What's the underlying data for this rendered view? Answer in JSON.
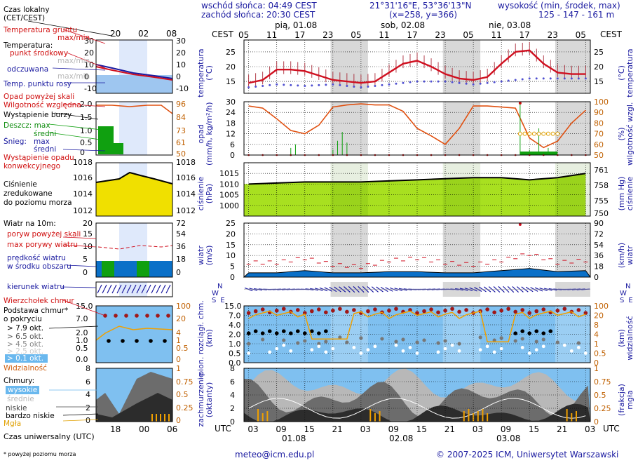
{
  "header": {
    "sunrise": "wschód słońca: 04:49 CEST",
    "sunset": "zachód słońca: 20:30 CEST",
    "coords": "21°31'16\"E, 53°36'13\"N",
    "grid": "(x=258,  y=366)",
    "height_label": "wysokość (min, środek, max)",
    "height_values": "125 - 147 - 161 m",
    "cest": "CEST",
    "utc": "UTC",
    "email": "meteo@icm.edu.pl",
    "copyright": "© 2007-2025 ICM, Uniwersytet Warszawski"
  },
  "days_top": [
    "pią, 01.08",
    "sob, 02.08",
    "nie, 03.08"
  ],
  "hours_top": [
    "05",
    "11",
    "17",
    "23",
    "05",
    "11",
    "17",
    "23",
    "05",
    "11",
    "17",
    "23",
    "05"
  ],
  "hours_bottom": [
    "03",
    "09",
    "15",
    "21",
    "03",
    "09",
    "15",
    "21",
    "03",
    "09",
    "15",
    "21",
    "03"
  ],
  "days_bottom": [
    "01.08",
    "02.08",
    "03.08"
  ],
  "legend": {
    "local_time": "Czas lokalny",
    "local_time_sub": "(CET/CEST)",
    "legend_hours_top": [
      "20",
      "02",
      "08"
    ],
    "legend_hours_bottom": [
      "18",
      "00",
      "06"
    ],
    "ground_temp": "Temperatura gruntu",
    "ground_temp_sub": "max/min",
    "temp": "Temperatura:",
    "temp_mid": "punkt środkowy",
    "temp_maxmin": "max/min",
    "temp_felt": "odczuwana",
    "temp_felt_maxmin": "max/min",
    "dew": "Temp. punktu rosy",
    "precip_above": "Opad powyżej skali",
    "humidity": "Wilgotność względna",
    "storm": "Wystąpienie burzy",
    "rain": "Deszcz: max",
    "rain_mid": "średni",
    "snow": "Śnieg:",
    "snow_max": "max",
    "snow_mid": "średni",
    "convective": "Wystąpienie opadu",
    "convective2": "konwekcyjnego",
    "pressure": "Ciśnienie",
    "pressure2": "zredukowane",
    "pressure3": "do poziomu morza",
    "wind": "Wiatr na 10m:",
    "gust_above": "poryw powyżej skali",
    "gust_max": "max porywy wiatru",
    "wind_speed": "prędkość wiatru",
    "wind_area": "w środku obszaru",
    "wind_dir": "kierunek wiatru",
    "cloud_top": "Wierzchołek chmur",
    "cloud_base": "Podstawa chmur*",
    "cloud_base2": "o pokryciu",
    "okt79": "> 7.9 okt.",
    "okt65": "> 6.5 okt.",
    "okt45": "> 4.5 okt.",
    "okt25": "> 2.5 okt.",
    "okt01": "> 0.1 okt.",
    "visibility": "Widzialność",
    "clouds": "Chmury:",
    "high": "wysokie",
    "mid": "średnie",
    "low": "niskie",
    "very_low": "bardzo niskie",
    "fog": "Mgła",
    "utc_time": "Czas uniwersalny (UTC)",
    "footnote": "* powyżej poziomu morza"
  },
  "axis_labels": {
    "temp_l": "temperatura",
    "temp_l2": "(°C)",
    "temp_r": "temperatura",
    "temp_r2": "(°C)",
    "precip_l": "opad",
    "precip_l2": "(mm/h, kg/m²/h)",
    "precip_r": "wilgotność wzgl.",
    "precip_r2": "(%)",
    "press_l": "ciśnienie",
    "press_l2": "(hPa)",
    "press_r": "ciśnienie",
    "press_r2": "(mm Hg)",
    "wind_l": "wiatr",
    "wind_l2": "(m/s)",
    "wind_r": "wiatr",
    "wind_r2": "(km/h)",
    "cloud_l": "pion. rozciągł. chm.",
    "cloud_l2": "(km)",
    "cloud_r": "widzialność",
    "cloud_r2": "(km)",
    "cover_l": "zachmurzenie",
    "cover_l2": "(oktanty)",
    "cover_r": "mgła",
    "cover_r2": "(frakcja)",
    "compass_n": "N",
    "compass_w": "W",
    "compass_s": "S",
    "compass_e": "E"
  },
  "colors": {
    "temp": "#d01020",
    "felt": "#1a1aa0",
    "dew": "#5050d0",
    "humidity": "#e05010",
    "rain": "#10a010",
    "pressure_fill": "#a8e020",
    "wind_fill": "#0a70c8",
    "gust": "#d01020",
    "cloud_bg": "#7fc0f0",
    "night_band": "#d8d8d8",
    "fog": "#f0a000",
    "axis_blue": "#1a1aa0",
    "axis_orange": "#c06000"
  },
  "chart_data": [
    {
      "type": "line",
      "title": "temperatura",
      "ylabel": "temperatura (°C)",
      "ylim": [
        11,
        29
      ],
      "yticks": [
        15,
        20,
        25
      ],
      "series": [
        {
          "name": "punkt środkowy",
          "x_hours_utc": [
            0,
            3,
            6,
            9,
            12,
            15,
            18,
            21,
            24,
            27,
            30,
            33,
            36,
            39,
            42,
            45,
            48,
            51,
            54,
            57,
            60,
            63,
            66,
            69,
            72
          ],
          "values": [
            14.5,
            15.5,
            19,
            19,
            18.5,
            17,
            15.5,
            15,
            14.5,
            15,
            18,
            21,
            22,
            20,
            17.5,
            16,
            15.5,
            16.5,
            21,
            25,
            25.5,
            21,
            18,
            17.5,
            17.5
          ]
        },
        {
          "name": "Temp. punktu rosy",
          "x_hours_utc": [
            0,
            6,
            12,
            18,
            24,
            30,
            36,
            42,
            48,
            54,
            60,
            66,
            72
          ],
          "values": [
            13,
            14,
            13.5,
            14,
            13,
            14,
            15,
            15,
            14,
            15,
            16,
            16,
            16
          ]
        }
      ]
    },
    {
      "type": "bar",
      "title": "opad",
      "ylabel": "opad (mm/h, kg/m²/h)",
      "ylim": [
        0,
        30
      ],
      "y2label": "wilgotność wzgl. (%)",
      "y2lim": [
        50,
        100
      ],
      "series": [
        {
          "name": "Wilgotność względna",
          "x_hours_utc": [
            0,
            3,
            6,
            9,
            12,
            15,
            18,
            21,
            24,
            27,
            30,
            33,
            36,
            39,
            42,
            45,
            48,
            51,
            54,
            57,
            60,
            63,
            66,
            69,
            72
          ],
          "values": [
            96,
            94,
            84,
            73,
            70,
            78,
            95,
            97,
            98,
            97,
            97,
            91,
            75,
            68,
            60,
            75,
            96,
            96,
            95,
            94,
            66,
            57,
            63,
            80,
            92
          ]
        },
        {
          "name": "Deszcz: max",
          "x_hours_utc": [
            9,
            10,
            18,
            19,
            20,
            21,
            58,
            60,
            62,
            64
          ],
          "values": [
            4,
            6,
            3,
            8,
            13,
            7,
            50,
            3,
            15,
            4
          ]
        }
      ]
    },
    {
      "type": "area",
      "title": "ciśnienie",
      "ylabel": "ciśnienie (hPa)",
      "ylim": [
        995,
        1020
      ],
      "yticks": [
        1000,
        1005,
        1010,
        1015
      ],
      "y2label": "ciśnienie (mm Hg)",
      "y2ticks": [
        750,
        755,
        758,
        761
      ],
      "x_hours_utc": [
        0,
        6,
        12,
        18,
        24,
        30,
        36,
        42,
        48,
        54,
        60,
        66,
        72
      ],
      "values": [
        1010,
        1010.5,
        1011,
        1011,
        1011,
        1011.5,
        1012,
        1012.5,
        1013,
        1013,
        1012,
        1013,
        1015
      ]
    },
    {
      "type": "line",
      "title": "wiatr",
      "ylabel": "wiatr (m/s)",
      "ylim": [
        0,
        25
      ],
      "yticks": [
        0,
        5,
        10,
        15,
        20,
        25
      ],
      "y2label": "wiatr (km/h)",
      "y2ticks": [
        0,
        18,
        36,
        54,
        72,
        90
      ],
      "series": [
        {
          "name": "prędkość wiatru",
          "x_hours_utc": [
            0,
            6,
            12,
            18,
            24,
            30,
            36,
            42,
            48,
            54,
            60,
            66,
            72
          ],
          "values": [
            2,
            2,
            3,
            2,
            2,
            2.5,
            2.5,
            2,
            2,
            3,
            4,
            2.5,
            3
          ]
        },
        {
          "name": "max porywy wiatru",
          "x_hours_utc": [
            0,
            6,
            12,
            18,
            24,
            30,
            36,
            42,
            48,
            54,
            60,
            66,
            72
          ],
          "values": [
            7,
            7,
            9,
            6,
            5,
            8,
            9,
            7,
            6,
            8,
            11,
            7,
            8
          ]
        }
      ]
    },
    {
      "type": "scatter",
      "title": "pion. rozciągł. chm.",
      "ylabel": "pion. rozciągł. chm. (km)",
      "ylim": [
        0,
        15
      ],
      "yticks": [
        0.0,
        0.5,
        1.0,
        2.0,
        4.0,
        7.0,
        15.0
      ],
      "y2label": "widzialność (km)",
      "y2ticks": [
        0,
        0.5,
        1,
        4,
        8,
        20,
        100
      ]
    },
    {
      "type": "area",
      "title": "zachmurzenie",
      "ylabel": "zachmurzenie (oktanty)",
      "ylim": [
        0,
        8
      ],
      "yticks": [
        0,
        2,
        4,
        6,
        8
      ],
      "y2label": "mgła (frakcja)",
      "y2ticks": [
        0,
        0.25,
        0.5,
        0.75,
        1
      ]
    }
  ]
}
